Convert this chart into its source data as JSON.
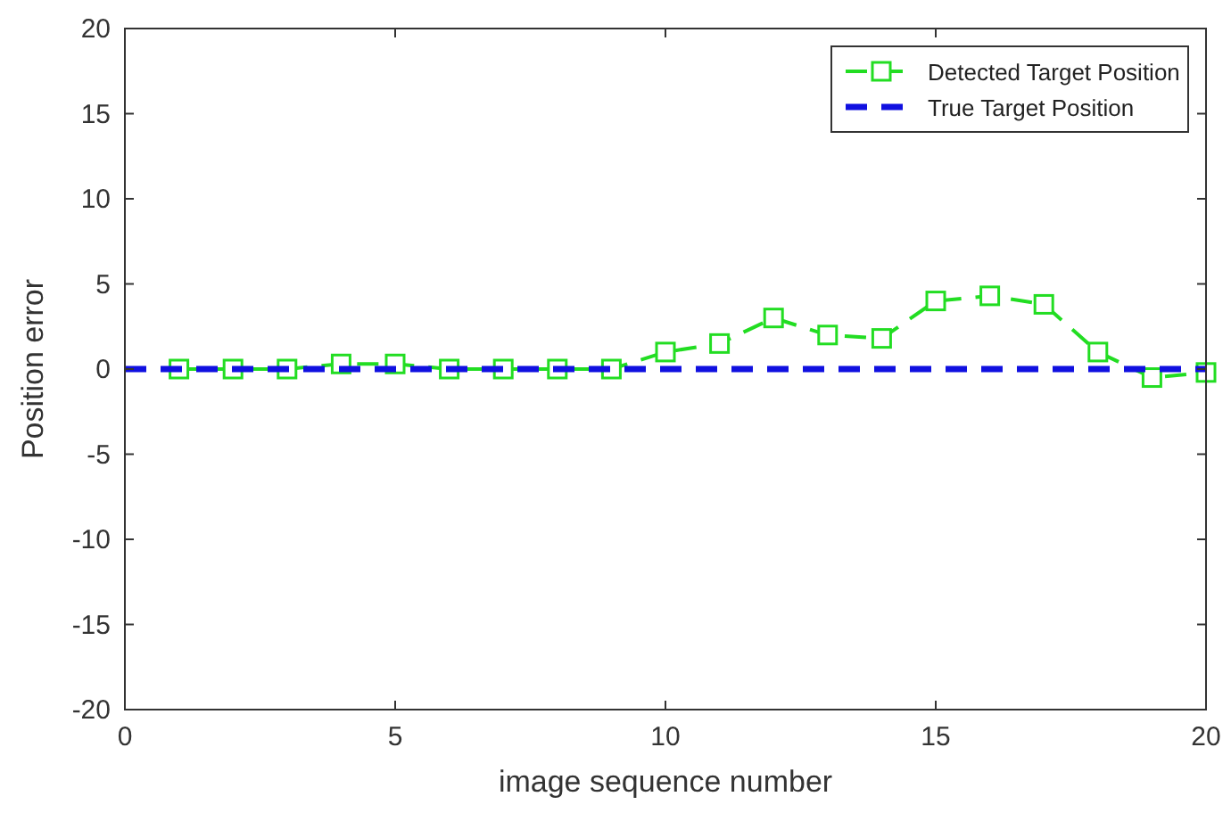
{
  "chart_data": {
    "type": "line",
    "xlabel": "image sequence number",
    "ylabel": "Position error",
    "xlim": [
      0,
      20
    ],
    "xticks": [
      0,
      5,
      10,
      15,
      20
    ],
    "ylim": [
      -20,
      20
    ],
    "yticks": [
      -20,
      -15,
      -10,
      -5,
      0,
      5,
      10,
      15,
      20
    ],
    "grid": false,
    "legend": "top right",
    "series": [
      {
        "name": "Detected Target Position",
        "color": "#22dd22",
        "marker": "square",
        "line_style": "dashed",
        "x": [
          1,
          2,
          3,
          4,
          5,
          6,
          7,
          8,
          9,
          10,
          11,
          12,
          13,
          14,
          15,
          16,
          17,
          18,
          19,
          20
        ],
        "values": [
          0,
          0,
          0,
          0.3,
          0.3,
          0,
          0,
          0,
          0,
          1,
          1.5,
          3,
          2,
          1.8,
          4,
          4.3,
          3.8,
          1,
          -0.5,
          -0.2
        ]
      },
      {
        "name": "True Target Position",
        "color": "#1010e0",
        "marker": "none",
        "line_style": "dashed",
        "x": [
          0,
          20
        ],
        "values": [
          0,
          0
        ]
      }
    ]
  }
}
